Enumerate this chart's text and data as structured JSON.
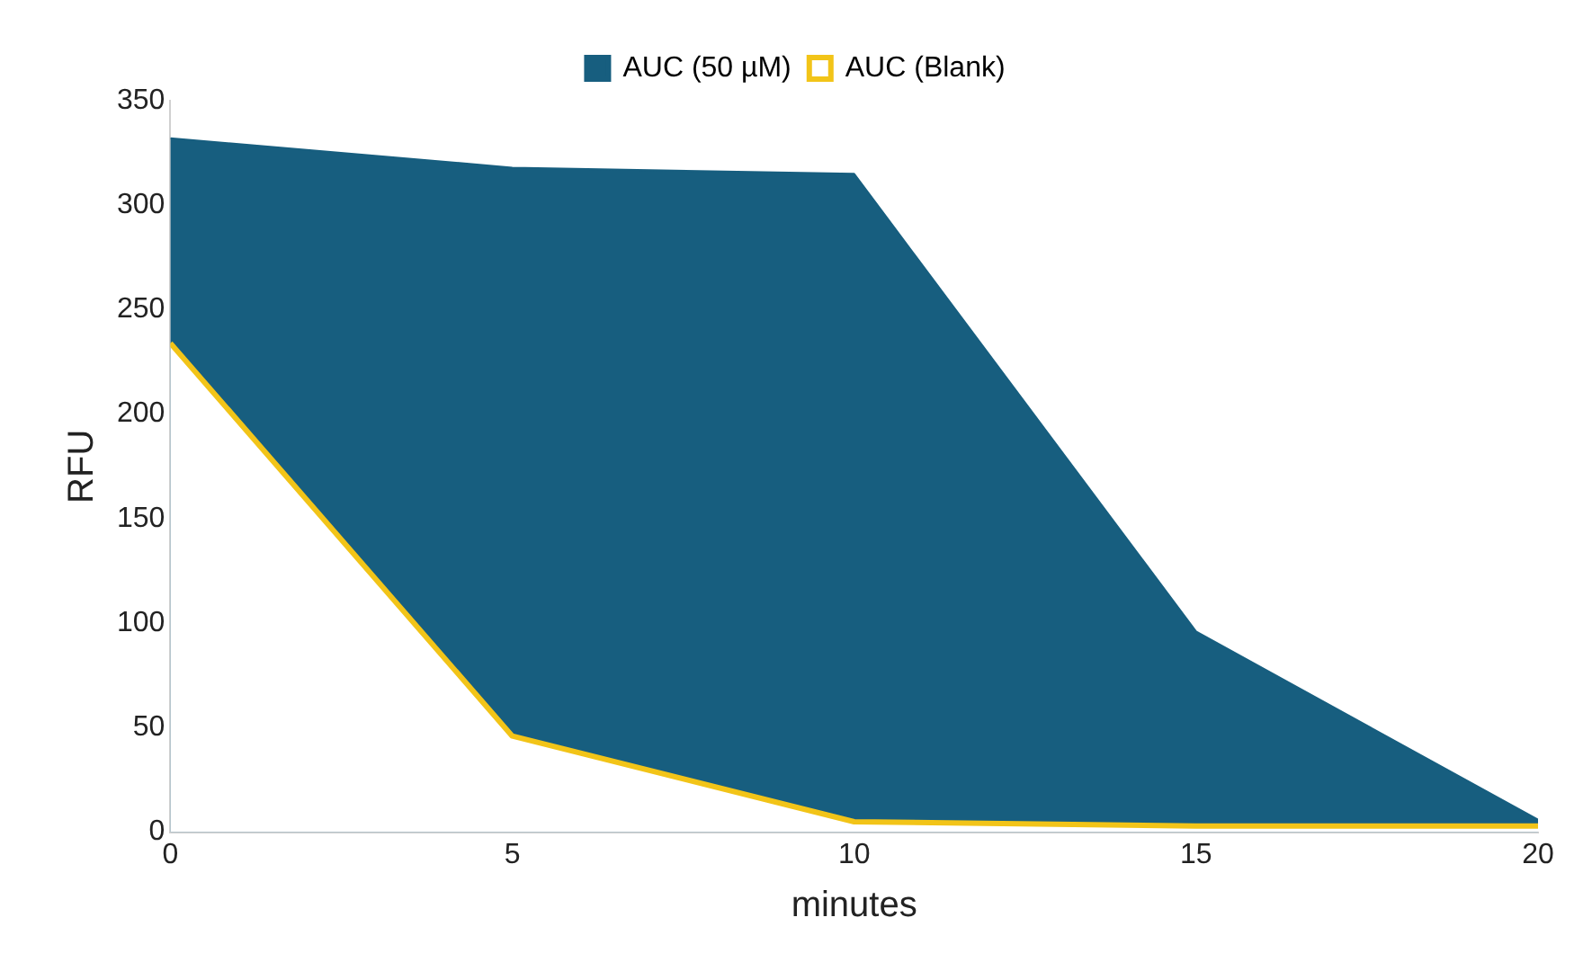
{
  "chart_data": {
    "type": "area",
    "xlabel": "minutes",
    "ylabel": "RFU",
    "x": [
      0,
      5,
      10,
      15,
      20
    ],
    "series": [
      {
        "name": "AUC (50 µM)",
        "type": "area",
        "color": "#175e7f",
        "values": [
          332,
          318,
          315,
          96,
          6
        ]
      },
      {
        "name": "AUC (Blank)",
        "type": "line",
        "color": "#f2c418",
        "values": [
          234,
          46,
          5,
          3,
          3
        ]
      }
    ],
    "xlim": [
      0,
      20
    ],
    "xticks": [
      0,
      5,
      10,
      15,
      20
    ],
    "ylim": [
      0,
      350
    ],
    "yticks": [
      0,
      50,
      100,
      150,
      200,
      250,
      300,
      350
    ],
    "grid": false,
    "legend": "top",
    "marker": "none"
  }
}
